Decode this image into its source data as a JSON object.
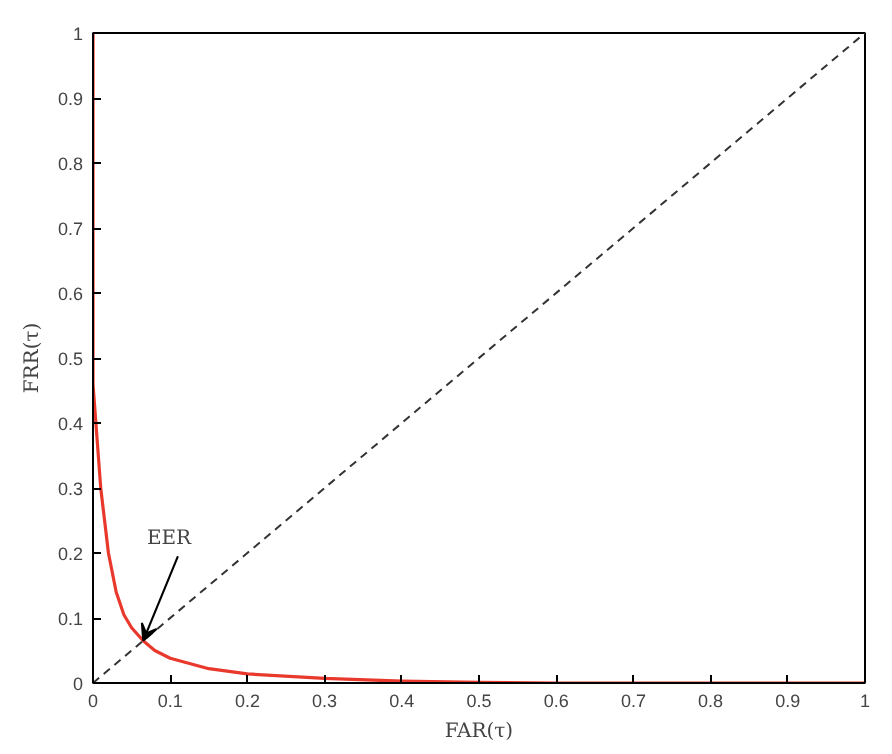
{
  "chart_data": {
    "type": "line",
    "xlabel": "FAR(τ)",
    "ylabel": "FRR(τ)",
    "xlim": [
      0,
      1
    ],
    "ylim": [
      0,
      1
    ],
    "xticks": [
      0,
      0.1,
      0.2,
      0.3,
      0.4,
      0.5,
      0.6,
      0.7,
      0.8,
      0.9,
      1
    ],
    "yticks": [
      0,
      0.1,
      0.2,
      0.3,
      0.4,
      0.5,
      0.6,
      0.7,
      0.8,
      0.9,
      1
    ],
    "grid": false,
    "series": [
      {
        "color": "#e8392c",
        "line_style": "solid",
        "x": [
          0,
          0,
          0.005,
          0.01,
          0.02,
          0.03,
          0.04,
          0.05,
          0.065,
          0.08,
          0.1,
          0.15,
          0.2,
          0.3,
          0.4,
          0.5,
          0.6,
          0.8,
          1
        ],
        "values": [
          1,
          0.46,
          0.38,
          0.3,
          0.2,
          0.14,
          0.105,
          0.085,
          0.065,
          0.05,
          0.038,
          0.022,
          0.014,
          0.007,
          0.003,
          0.001,
          0,
          0,
          0
        ]
      },
      {
        "color": "#333333",
        "line_style": "dashed",
        "x": [
          0,
          1
        ],
        "values": [
          0,
          1
        ]
      }
    ],
    "annotations": [
      {
        "text": "EER",
        "x": 0.065,
        "y": 0.065
      }
    ]
  }
}
